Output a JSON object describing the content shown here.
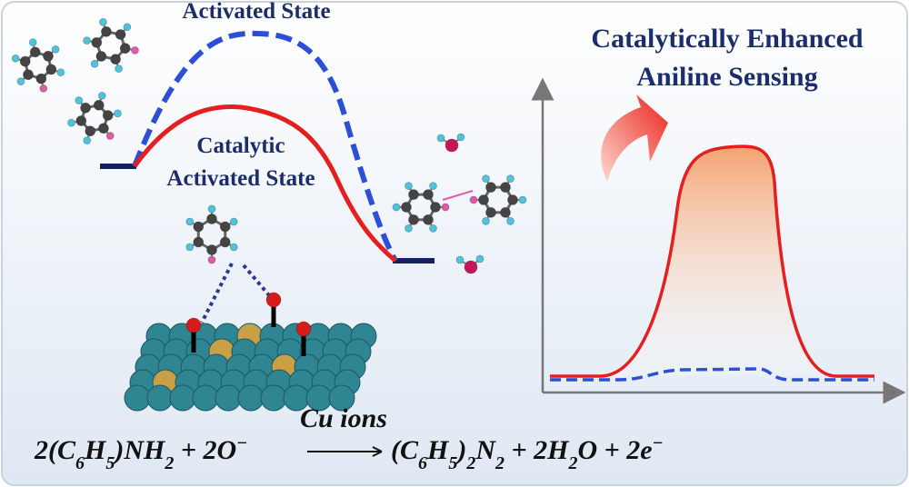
{
  "diagram": {
    "energy_labels": {
      "activated": "Activated State",
      "catalytic_line1": "Catalytic",
      "catalytic_line2": "Activated State"
    },
    "sensing_title": {
      "line1": "Catalytically Enhanced",
      "line2": "Aniline Sensing"
    },
    "equation": {
      "left": [
        {
          "t": "2(C"
        },
        {
          "t": "6",
          "s": "sub"
        },
        {
          "t": "H"
        },
        {
          "t": "5",
          "s": "sub"
        },
        {
          "t": ")NH"
        },
        {
          "t": "2",
          "s": "sub"
        },
        {
          "t": "  +  2O"
        },
        {
          "t": "−",
          "s": "sup"
        }
      ],
      "arrow_label": "Cu ions",
      "right": [
        {
          "t": "(C"
        },
        {
          "t": "6",
          "s": "sub"
        },
        {
          "t": "H"
        },
        {
          "t": "5",
          "s": "sub"
        },
        {
          "t": ")"
        },
        {
          "t": "2",
          "s": "sub"
        },
        {
          "t": "N"
        },
        {
          "t": "2",
          "s": "sub"
        },
        {
          "t": "  + 2H"
        },
        {
          "t": "2",
          "s": "sub"
        },
        {
          "t": "O + 2e"
        },
        {
          "t": "−",
          "s": "sup"
        }
      ]
    }
  }
}
